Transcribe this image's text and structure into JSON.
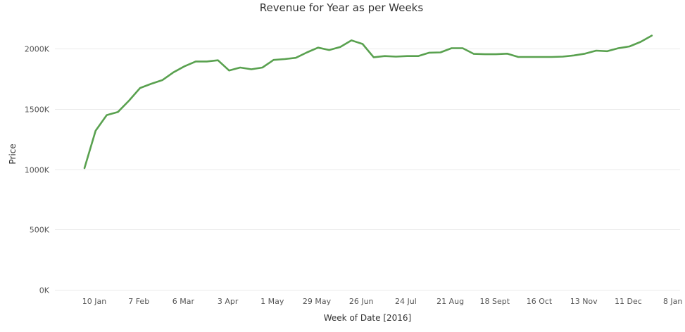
{
  "chart_data": {
    "type": "line",
    "title": "Revenue for Year as per Weeks",
    "xlabel": "Week of Date [2016]",
    "ylabel": "Price",
    "x_tick_labels": [
      "10 Jan",
      "7 Feb",
      "6 Mar",
      "3 Apr",
      "1 May",
      "29 May",
      "26 Jun",
      "24 Jul",
      "21 Aug",
      "18 Sept",
      "16 Oct",
      "13 Nov",
      "11 Dec",
      "8 Jan"
    ],
    "y_tick_labels": [
      "0K",
      "500K",
      "1000K",
      "1500K",
      "2000K"
    ],
    "y_ticks": [
      0,
      500000,
      1000000,
      1500000,
      2000000
    ],
    "ylim": [
      0,
      2230000
    ],
    "grid": true,
    "legend": "none",
    "colors": {
      "line": "#59a14f",
      "grid": "#ebebeb",
      "text": "#333333"
    },
    "series": [
      {
        "values": [
          1010000,
          1320000,
          1450000,
          1475000,
          1570000,
          1675000,
          1710000,
          1740000,
          1805000,
          1855000,
          1895000,
          1895000,
          1905000,
          1820000,
          1845000,
          1830000,
          1845000,
          1908000,
          1915000,
          1925000,
          1970000,
          2010000,
          1990000,
          2015000,
          2070000,
          2040000,
          1930000,
          1940000,
          1935000,
          1940000,
          1940000,
          1968000,
          1970000,
          2005000,
          2005000,
          1958000,
          1955000,
          1955000,
          1960000,
          1932000,
          1932000,
          1932000,
          1932000,
          1935000,
          1945000,
          1960000,
          1985000,
          1980000,
          2005000,
          2020000,
          2058000,
          2110000
        ]
      }
    ]
  }
}
